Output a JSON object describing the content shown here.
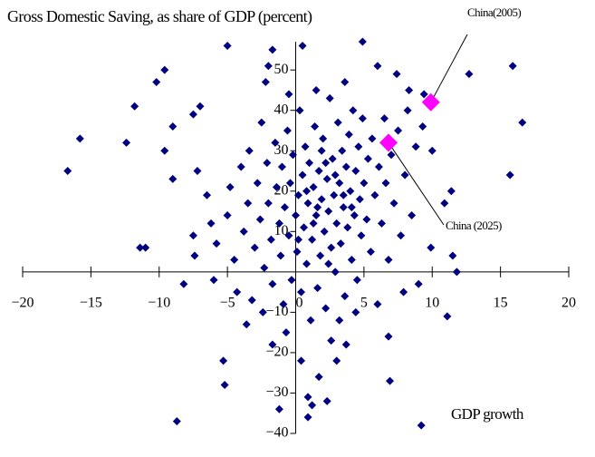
{
  "chart_data": {
    "type": "scatter",
    "title": "Gross Domestic Saving, as share of GDP (percent)",
    "x_label": "GDP growth",
    "xlim": [
      -20,
      20
    ],
    "ylim": [
      -40,
      57
    ],
    "xticks": [
      {
        "value": -20,
        "label": "−20"
      },
      {
        "value": -15,
        "label": "−15"
      },
      {
        "value": -10,
        "label": "−10"
      },
      {
        "value": -5,
        "label": "−5"
      },
      0,
      5,
      10,
      15,
      20
    ],
    "yticks": [
      {
        "value": -40,
        "label": "−40"
      },
      {
        "value": -30,
        "label": "−30"
      },
      {
        "value": -20,
        "label": "−20"
      },
      {
        "value": -10,
        "label": "−10"
      },
      10,
      20,
      30,
      40,
      50
    ],
    "series": [
      {
        "color": "#000080",
        "x": [
          -16.7,
          -15.8,
          -12.4,
          -11.8,
          -11.4,
          -11,
          -10.2,
          -9.6,
          -9.6,
          -9,
          -8.2,
          -7.5,
          -7,
          -7.2,
          -9,
          -8.7,
          -5,
          -5.3,
          -5.2,
          -2,
          -2.2,
          -1.7,
          0.5,
          4.9,
          6,
          7.4,
          8.3,
          9.4,
          12.7,
          15.9,
          16.6,
          15.7,
          11.4,
          11.5,
          11.8,
          9.9,
          11.1,
          9.2,
          6.8,
          6.9,
          0.9,
          1.2,
          2.3,
          0.9,
          -1.7,
          -1.2,
          3,
          3.7,
          1.7,
          3.2,
          10,
          10.9,
          -7.5,
          -7.4,
          -6.5,
          -6.2,
          -6,
          -5.8,
          -5,
          -4.8,
          -4.5,
          -4.3,
          -4,
          -3.8,
          -3.5,
          -3.4,
          -3.2,
          -3,
          -2.8,
          -2.6,
          -2.5,
          -2.3,
          -2.1,
          -2,
          -1.8,
          -1.7,
          -1.5,
          -1.4,
          -1.2,
          -1.1,
          -1,
          -0.9,
          -0.8,
          -0.6,
          -0.5,
          -0.4,
          -0.3,
          -0.2,
          0,
          0.1,
          0.2,
          0.3,
          0.4,
          0.5,
          0.6,
          0.7,
          0.8,
          0.9,
          1,
          1.1,
          1.2,
          1.3,
          1.4,
          1.5,
          1.6,
          1.7,
          1.8,
          1.9,
          2,
          2.1,
          2.2,
          2.3,
          2.4,
          2.5,
          2.6,
          2.7,
          2.8,
          2.9,
          3,
          3.1,
          3.2,
          3.3,
          3.4,
          3.5,
          3.6,
          3.7,
          3.8,
          3.9,
          4,
          4.1,
          4.2,
          4.3,
          4.4,
          4.5,
          4.6,
          4.7,
          4.8,
          4.9,
          5,
          5.2,
          5.3,
          5.5,
          5.6,
          5.8,
          6,
          6.1,
          6.3,
          6.5,
          6.6,
          6.8,
          7,
          7.2,
          7.5,
          7.7,
          8,
          8.2,
          8.5,
          8.8,
          9,
          9.3,
          -3.6,
          -0.7,
          2.6,
          0.4,
          4.4,
          -2.4,
          1.5,
          3.6,
          -0.5,
          7.9,
          0.8,
          1.6,
          2.2,
          1.3,
          2.9,
          0.2,
          3.5,
          1.9,
          2.4,
          4.1
        ],
        "y": [
          25,
          33,
          32,
          41,
          6,
          6,
          47,
          50,
          30,
          36,
          -3,
          39,
          41,
          25,
          23,
          -37,
          56,
          -22,
          -28,
          51,
          47,
          55,
          56,
          57,
          51,
          49,
          45,
          44,
          49,
          51,
          37,
          24,
          20,
          4,
          0,
          6,
          -11,
          -38,
          -16,
          -27,
          -36,
          -33,
          -32,
          -31,
          -18,
          -34,
          -22,
          -18,
          -26,
          -12,
          30,
          17,
          9,
          4,
          19,
          12,
          -2,
          7,
          14,
          21,
          3,
          -5,
          26,
          10,
          17,
          30,
          -7,
          6,
          22,
          13,
          37,
          1,
          27,
          17,
          8,
          -3,
          32,
          21,
          12,
          4,
          26,
          -8,
          16,
          35,
          9,
          22,
          -2,
          29,
          14,
          5,
          19,
          40,
          -5,
          24,
          11,
          31,
          2,
          17,
          27,
          -12,
          8,
          21,
          36,
          14,
          -4,
          25,
          4,
          18,
          33,
          10,
          -9,
          23,
          15,
          43,
          6,
          28,
          19,
          0,
          12,
          37,
          22,
          7,
          30,
          16,
          -6,
          26,
          11,
          34,
          20,
          3,
          40,
          14,
          25,
          -2,
          31,
          18,
          9,
          38,
          22,
          13,
          28,
          5,
          33,
          19,
          -8,
          26,
          12,
          38,
          22,
          3,
          29,
          17,
          35,
          9,
          24,
          40,
          14,
          31,
          -3,
          36,
          -13,
          -15,
          -17,
          -22,
          -10,
          -10,
          45,
          47,
          44,
          -5,
          20,
          16,
          27,
          12,
          24,
          8,
          19,
          30,
          2,
          16
        ]
      },
      {
        "name": "China(2005)",
        "color": "#ff00ff",
        "x": [
          9.9
        ],
        "y": [
          42
        ]
      },
      {
        "name": "China (2025)",
        "color": "#ff00ff",
        "x": [
          6.8
        ],
        "y": [
          32
        ]
      }
    ]
  }
}
